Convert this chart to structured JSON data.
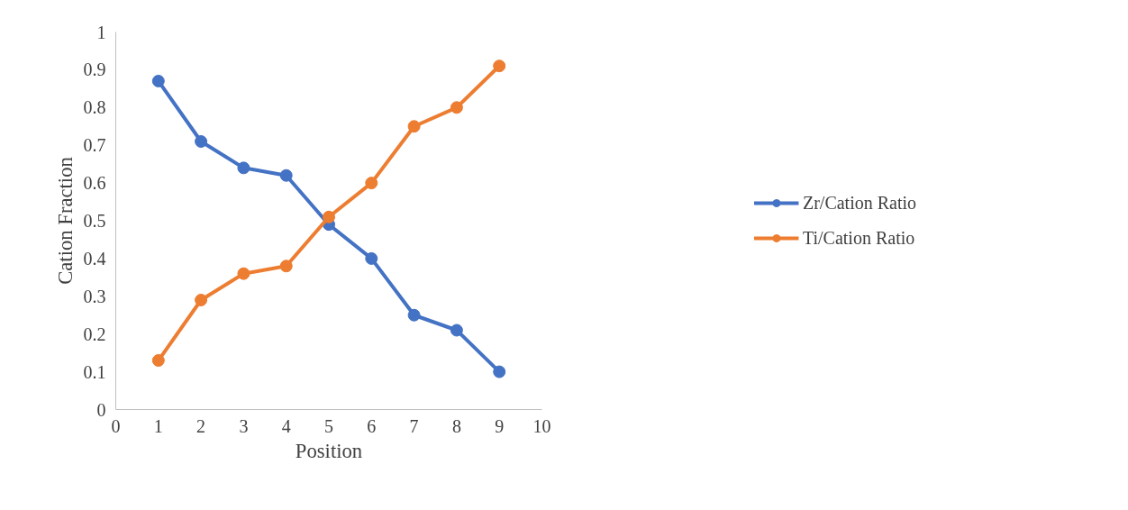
{
  "chart_data": {
    "type": "line",
    "xlabel": "Position",
    "ylabel": "Cation Fraction",
    "x": [
      1,
      2,
      3,
      4,
      5,
      6,
      7,
      8,
      9
    ],
    "series": [
      {
        "name": "Zr/Cation Ratio",
        "color": "#4472c4",
        "values": [
          0.87,
          0.71,
          0.64,
          0.62,
          0.49,
          0.4,
          0.25,
          0.21,
          0.1
        ]
      },
      {
        "name": "Ti/Cation Ratio",
        "color": "#ed7d31",
        "values": [
          0.13,
          0.29,
          0.36,
          0.38,
          0.51,
          0.6,
          0.75,
          0.8,
          0.91
        ]
      }
    ],
    "xlim": [
      0,
      10
    ],
    "xticks": [
      0,
      1,
      2,
      3,
      4,
      5,
      6,
      7,
      8,
      9,
      10
    ],
    "ylim": [
      0,
      1
    ],
    "yticks": [
      0,
      0.1,
      0.2,
      0.3,
      0.4,
      0.5,
      0.6,
      0.7,
      0.8,
      0.9,
      1
    ],
    "grid": false,
    "legend": "right",
    "marker": "circle",
    "line_style": "solid"
  }
}
